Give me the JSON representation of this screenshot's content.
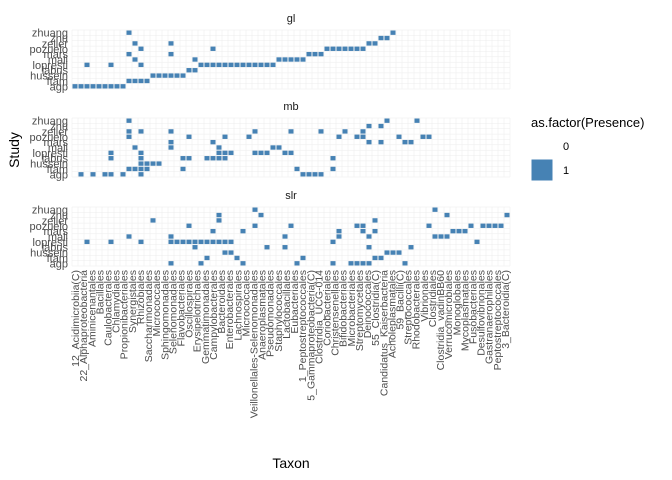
{
  "chart_data": {
    "type": "heatmap",
    "title": "",
    "xlabel": "Taxon",
    "ylabel": "Study",
    "legend": {
      "title": "as.factor(Presence)",
      "position": "right",
      "entries": [
        {
          "label": "0",
          "color": "#ffffff"
        },
        {
          "label": "1",
          "color": "#4682b4"
        }
      ]
    },
    "grid": true,
    "studies": [
      "agp",
      "flat",
      "hussein",
      "labus",
      "lopresti",
      "mars",
      "mali",
      "pozuelo",
      "zeller",
      "zhang",
      "zhuang"
    ],
    "study_tick_labels": [
      "agp",
      "ftam",
      "hussein",
      "labus",
      "lopresti",
      "mali",
      "mars",
      "pozuelo",
      "zeller",
      "zhu",
      "zhuang"
    ],
    "x_tick_labels": [
      "12_Acidimicrobiia(C)",
      "22_Alphaproteobacteria",
      "Aminicenantales",
      "Bacillales",
      "Caulobacterales",
      "Chlamydiales",
      "Propionibacteriales",
      "Synergistales",
      "Rhizobiales",
      "Saccharimonadales",
      "Micrococcales",
      "Sphingomonadales",
      "Selenomonadales",
      "Flavobacteriales",
      "Oscillospirales",
      "Erysipelotrichales",
      "Gemmatimonadales",
      "Campylobacterales",
      "Bacteroidales",
      "Enterobacterales",
      "Lachnospirales",
      "Micrococcales",
      "Veillonellales-Selenomonadales",
      "Anaeroplasmatales",
      "Pseudomonadales",
      "Staphylococcales",
      "Lactobacillales",
      "Eubacteriales",
      "1_Peptostreptococcales",
      "5_Gammaproteobacteria(C)",
      "Clostridia_UCG-014",
      "Coriobacteriales",
      "Christensenellales",
      "Bifidobacteriales",
      "Microbacteriales",
      "Streptomycetales",
      "Deinococcales",
      "55_Clostridia(C)",
      "Candidatus_Kaiserbacteria",
      "Acholeplasmatales",
      "59_Bacilli(C)",
      "Streptococcales",
      "Rhodobacterales",
      "Vibrionales",
      "Clostridiales",
      "Clostridia_vadinBB60",
      "Verrucomicrobiales",
      "Monoglobales",
      "Mycoplasmatales",
      "Fusobacteriales",
      "Desulfovibrionales",
      "Gastranaerophilales",
      "Peptostreptococcales",
      "3_Bacteroidia(C)"
    ],
    "n_taxa": 73,
    "panels": [
      {
        "name": "gl",
        "cells": {
          "agp": [
            0,
            1,
            2,
            3,
            4,
            5,
            6,
            7,
            8
          ],
          "flat": [
            9,
            10,
            11,
            12
          ],
          "hussein": [
            13,
            14,
            15,
            16,
            17,
            18
          ],
          "labus": [
            19,
            20
          ],
          "lopresti": [
            2,
            6,
            11,
            21,
            22,
            23,
            24,
            25,
            26,
            27,
            28,
            29,
            30,
            31,
            32,
            33
          ],
          "mars": [
            10,
            20,
            34,
            35,
            36,
            37,
            38
          ],
          "mali": [
            9,
            16,
            39,
            40,
            41
          ],
          "pozuelo": [
            11,
            23,
            42,
            43,
            44,
            45,
            46,
            47,
            48
          ],
          "zeller": [
            10,
            16,
            49,
            50
          ],
          "zhang": [
            51,
            52
          ],
          "zhuang": [
            9,
            53
          ]
        }
      },
      {
        "name": "mb",
        "cells": {
          "agp": [
            1,
            3,
            5,
            6,
            8,
            11,
            38,
            39,
            40,
            41
          ],
          "flat": [
            9,
            10,
            11,
            12,
            18,
            37,
            43
          ],
          "hussein": [
            11,
            12,
            13,
            14
          ],
          "labus": [
            6,
            11,
            18,
            19,
            22,
            23,
            24,
            25,
            43
          ],
          "lopresti": [
            6,
            11,
            24,
            25,
            26,
            30,
            31,
            32,
            35,
            36
          ],
          "mars": [
            10,
            16,
            24,
            33,
            34
          ],
          "mali": [
            16,
            23,
            49,
            51,
            55,
            56
          ],
          "pozuelo": [
            9,
            19,
            25,
            29,
            44,
            47,
            48,
            54,
            58,
            59
          ],
          "zeller": [
            9,
            11,
            16,
            30,
            36,
            41,
            45,
            48
          ],
          "zhang": [
            49,
            51
          ],
          "zhuang": [
            9,
            52,
            57
          ]
        }
      },
      {
        "name": "slr",
        "cells": {
          "agp": [
            16,
            21,
            28,
            37,
            43,
            46,
            47,
            48,
            49,
            55
          ],
          "flat": [
            22,
            27,
            38,
            50,
            51
          ],
          "hussein": [
            25,
            26,
            52,
            53,
            54
          ],
          "labus": [
            20,
            32,
            35,
            49,
            56
          ],
          "lopresti": [
            2,
            6,
            11,
            16,
            17,
            18,
            19,
            20,
            21,
            22,
            23,
            24,
            25,
            26,
            43,
            67
          ],
          "mars": [
            9,
            16,
            35,
            44,
            49,
            60,
            61,
            62
          ],
          "mali": [
            23,
            28,
            44,
            48,
            50,
            63,
            64,
            65
          ],
          "pozuelo": [
            19,
            30,
            36,
            47,
            48,
            59,
            66,
            68,
            69,
            70,
            71
          ],
          "zeller": [
            13,
            24,
            50
          ],
          "zhang": [
            24,
            31,
            62,
            72
          ],
          "zhuang": [
            30,
            60
          ]
        }
      }
    ]
  }
}
